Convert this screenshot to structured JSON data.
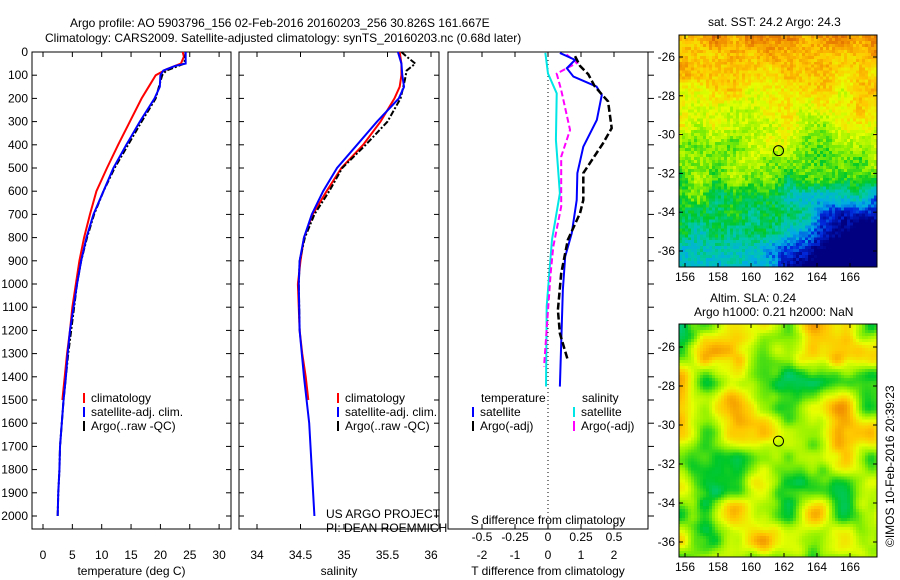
{
  "title_line1": "Argo profile: AO 5903796_156 02-Feb-2016 20160203_256 30.826S 161.667E",
  "title_line2": "Climatology: CARS2009. Satellite-adjusted climatology: synTS_20160203.nc (0.68d later)",
  "colors": {
    "climatology": "#ff0000",
    "satellite": "#0000ff",
    "argo": "#000000",
    "sal_satellite": "#00e5e5",
    "sal_argo": "#ff00ff"
  },
  "depth_ticks": [
    "0",
    "100",
    "200",
    "300",
    "400",
    "500",
    "600",
    "700",
    "800",
    "900",
    "1000",
    "1100",
    "1200",
    "1300",
    "1400",
    "1500",
    "1600",
    "1700",
    "1800",
    "1900",
    "2000"
  ],
  "credit": {
    "line1": "US ARGO PROJECT",
    "line2": "PI: DEAN ROEMMICH"
  },
  "chart_data": [
    {
      "type": "line",
      "title": "",
      "xlabel": "temperature (deg C)",
      "ylabel": "depth",
      "xlim": [
        -2,
        31
      ],
      "ylim": [
        2060,
        0
      ],
      "xticks": [
        "0",
        "5",
        "10",
        "15",
        "20",
        "25",
        "30"
      ],
      "legend": {
        "placement": "bottom-center",
        "entries": [
          "climatology",
          "satellite-adj. clim.",
          "Argo(..raw -QC)"
        ]
      },
      "series": [
        {
          "name": "climatology",
          "depth": [
            0,
            20,
            50,
            75,
            100,
            150,
            200,
            300,
            400,
            500,
            600,
            700,
            800,
            900,
            1000,
            1100,
            1200,
            1300,
            1400,
            1500
          ],
          "value": [
            23.8,
            24,
            23.5,
            21,
            19.2,
            18,
            16.8,
            14.8,
            12.8,
            10.9,
            9.1,
            8,
            7,
            6.2,
            5.6,
            5,
            4.6,
            4.1,
            3.7,
            3.3
          ]
        },
        {
          "name": "Argo(..raw -QC)",
          "depth": [
            0,
            50,
            80,
            100,
            200,
            300,
            400,
            500,
            600,
            700,
            800,
            900,
            1000,
            1100,
            1200,
            1300,
            1400,
            1500,
            1600,
            1700,
            1800,
            1900,
            2000
          ],
          "value": [
            24.3,
            24.1,
            21,
            20.3,
            19.2,
            16.8,
            14.5,
            12.2,
            10.3,
            8.7,
            7.5,
            6.5,
            5.8,
            5.3,
            4.8,
            4.3,
            3.9,
            3.5,
            3.2,
            2.9,
            2.8,
            2.6,
            2.5
          ]
        },
        {
          "name": "satellite-adj. clim.",
          "depth": [
            0,
            50,
            60,
            80,
            100,
            150,
            200,
            300,
            400,
            500,
            600,
            700,
            800,
            900,
            1000,
            1100,
            1200,
            1300,
            1400,
            1500,
            1600,
            1700,
            1800,
            1900,
            2000
          ],
          "value": [
            24.3,
            24.3,
            22.5,
            20.5,
            20,
            19.9,
            19,
            16.5,
            14.2,
            12,
            10.3,
            8.6,
            7.4,
            6.5,
            5.8,
            5.2,
            4.6,
            4.2,
            3.9,
            3.5,
            3.2,
            2.9,
            2.8,
            2.6,
            2.5
          ]
        }
      ]
    },
    {
      "type": "line",
      "title": "",
      "xlabel": "salinity",
      "ylabel": "depth",
      "xlim": [
        33.8,
        36.1
      ],
      "ylim": [
        2060,
        0
      ],
      "xticks": [
        "34",
        "34.5",
        "35",
        "35.5",
        "36"
      ],
      "legend": {
        "placement": "bottom-right",
        "entries": [
          "climatology",
          "satellite-adj. clim.",
          "Argo(..raw -QC)"
        ]
      },
      "series": [
        {
          "name": "climatology",
          "depth": [
            0,
            50,
            100,
            150,
            200,
            300,
            400,
            500,
            600,
            700,
            800,
            900,
            1000,
            1100,
            1200,
            1300,
            1400,
            1500
          ],
          "value": [
            35.64,
            35.66,
            35.66,
            35.64,
            35.58,
            35.42,
            35.22,
            34.97,
            34.8,
            34.64,
            34.54,
            34.5,
            34.47,
            34.48,
            34.49,
            34.52,
            34.56,
            34.59
          ]
        },
        {
          "name": "Argo(..raw -QC)",
          "depth": [
            0,
            20,
            50,
            80,
            120,
            200,
            300,
            400,
            500,
            600,
            700,
            800,
            900,
            1000,
            1200
          ],
          "value": [
            35.66,
            35.72,
            35.82,
            35.72,
            35.7,
            35.65,
            35.5,
            35.25,
            34.98,
            34.83,
            34.66,
            34.55,
            34.49,
            34.48,
            34.49
          ]
        },
        {
          "name": "satellite-adj. clim.",
          "depth": [
            0,
            50,
            100,
            150,
            200,
            300,
            400,
            500,
            600,
            700,
            800,
            900,
            1000,
            1200,
            1400,
            1600,
            1800,
            2000
          ],
          "value": [
            35.62,
            35.66,
            35.67,
            35.69,
            35.63,
            35.38,
            35.15,
            34.92,
            34.76,
            34.63,
            34.54,
            34.49,
            34.48,
            34.49,
            34.54,
            34.6,
            34.63,
            34.66
          ]
        }
      ]
    },
    {
      "type": "line",
      "title": "",
      "xlabel": "T difference from climatology",
      "xlabel2": "S difference from climatology",
      "ylabel": "depth",
      "xlim": [
        -3,
        3
      ],
      "ylim": [
        2060,
        0
      ],
      "xticks": [
        "-2",
        "-1",
        "0",
        "1",
        "2"
      ],
      "xticks2": [
        "-0.5",
        "-0.25",
        "0",
        "0.25",
        "0.5"
      ],
      "legend": {
        "placement": "bottom",
        "temperature_title": "temperature",
        "salinity_title": "salinity",
        "entries": [
          "satellite",
          "Argo(-adj)",
          "satellite",
          "Argo(-adj)"
        ]
      },
      "series": [
        {
          "name": "temperature satellite",
          "units": "degC",
          "depth": [
            4,
            34,
            70,
            106,
            149,
            185,
            293,
            408,
            522,
            638,
            781,
            882,
            1026,
            1442
          ],
          "value": [
            0.36,
            0.82,
            0.57,
            0.77,
            1.47,
            1.63,
            1.48,
            1.07,
            0.89,
            0.87,
            0.72,
            0.52,
            0.45,
            0.36
          ]
        },
        {
          "name": "temperature Argo(-adj)",
          "units": "degC",
          "depth": [
            18,
            60,
            96,
            149,
            213,
            328,
            393,
            522,
            638,
            695,
            810,
            954,
            1112,
            1213,
            1328
          ],
          "value": [
            0.82,
            0.97,
            1.22,
            1.42,
            1.82,
            1.93,
            1.67,
            1.07,
            1.07,
            0.97,
            0.6,
            0.4,
            0.3,
            0.36,
            0.6
          ]
        },
        {
          "name": "salinity satellite",
          "units": "psu",
          "depth": [
            4,
            93,
            178,
            379,
            609,
            810,
            1097,
            1442
          ],
          "value": [
            -0.02,
            0,
            0.066,
            0.06,
            0.09,
            0.03,
            -0.01,
            -0.015
          ]
        },
        {
          "name": "salinity Argo(-adj)",
          "units": "psu",
          "depth": [
            11,
            47,
            93,
            164,
            336,
            451,
            666,
            839,
            954,
            1356
          ],
          "value": [
            0.14,
            0.22,
            0.066,
            0.1,
            0.167,
            0.1,
            0.1,
            0.04,
            0.02,
            -0.03
          ]
        }
      ]
    }
  ],
  "maps": {
    "sst": {
      "title": "sat. SST: 24.2 Argo: 24.3",
      "lat_ticks": [
        "-26",
        "-28",
        "-30",
        "-32",
        "-34",
        "-36"
      ],
      "lon_ticks": [
        "156",
        "158",
        "160",
        "162",
        "164",
        "166"
      ],
      "station": {
        "lon": 161.667,
        "lat": -30.826
      }
    },
    "sla": {
      "title_line1": "Altim. SLA: 0.24",
      "title_line2": "Argo h1000: 0.21 h2000: NaN",
      "lat_ticks": [
        "-26",
        "-28",
        "-30",
        "-32",
        "-34",
        "-36"
      ],
      "lon_ticks": [
        "156",
        "158",
        "160",
        "162",
        "164",
        "166"
      ],
      "station": {
        "lon": 161.667,
        "lat": -30.826
      }
    }
  },
  "watermark": "©IMOS 10-Feb-2016 20:39:23"
}
